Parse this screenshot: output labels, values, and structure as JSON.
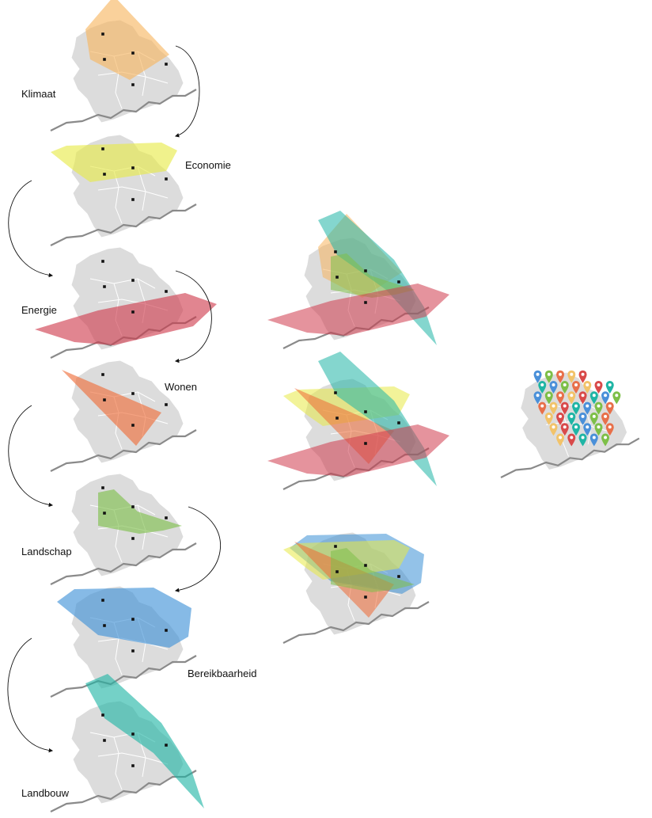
{
  "labels": {
    "klimaat": "Klimaat",
    "economie": "Economie",
    "energie": "Energie",
    "wonen": "Wonen",
    "landschap": "Landschap",
    "bereikbaarheid": "Bereikbaarheid",
    "landbouw": "Landbouw"
  },
  "colors": {
    "map_fill": "#dcdcdc",
    "map_line": "#ffffff",
    "river": "#8a8a8a",
    "town": "#111111",
    "arrow": "#111111",
    "klimaat": "#f7b45e",
    "economie": "#e7ea46",
    "energie": "#cf3a4c",
    "wonen": "#ef6a35",
    "landschap": "#7dbf48",
    "bereikbaarheid": "#3b8fd6",
    "landbouw": "#1fb5a5"
  },
  "pin_colors": [
    "#4a90d9",
    "#7dbf48",
    "#e8704a",
    "#f2c36a",
    "#d94a4a",
    "#1fb5a5"
  ]
}
